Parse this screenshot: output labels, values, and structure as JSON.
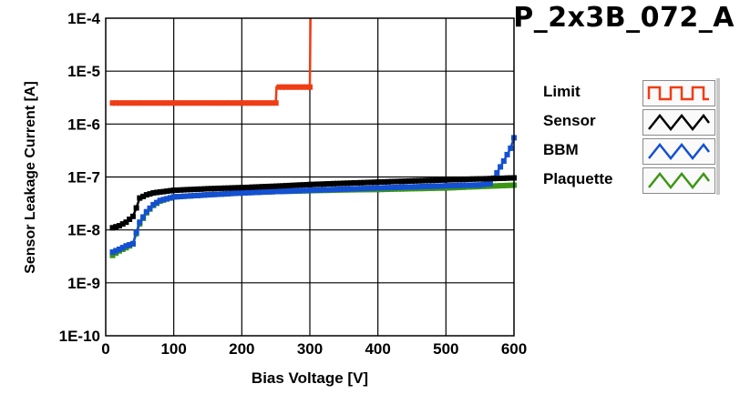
{
  "title": "P_2x3B_072_A",
  "colors": {
    "limit": "#f03c14",
    "sensor": "#000000",
    "bbm": "#1450d2",
    "plaquette": "#3c9614",
    "grid": "#000000",
    "plot_bg": "#ffffff"
  },
  "chart_data": {
    "type": "line",
    "title": "P_2x3B_072_A",
    "xlabel": "Bias Voltage [V]",
    "ylabel": "Sensor Leakage Current [A]",
    "xlim": [
      0,
      600
    ],
    "ylim": [
      1e-10,
      0.0001
    ],
    "yscale": "log",
    "grid": true,
    "legend_position": "right",
    "x_ticks": [
      {
        "value": 0,
        "label": "0"
      },
      {
        "value": 100,
        "label": "100"
      },
      {
        "value": 200,
        "label": "200"
      },
      {
        "value": 300,
        "label": "300"
      },
      {
        "value": 400,
        "label": "400"
      },
      {
        "value": 500,
        "label": "500"
      },
      {
        "value": 600,
        "label": "600"
      }
    ],
    "y_ticks": [
      {
        "value": 0.0001,
        "label": "1E-4"
      },
      {
        "value": 1e-05,
        "label": "1E-5"
      },
      {
        "value": 1e-06,
        "label": "1E-6"
      },
      {
        "value": 1e-07,
        "label": "1E-7"
      },
      {
        "value": 1e-08,
        "label": "1E-8"
      },
      {
        "value": 1e-09,
        "label": "1E-9"
      },
      {
        "value": 1e-10,
        "label": "1E-10"
      }
    ],
    "series": [
      {
        "name": "Limit",
        "color": "#f03c14",
        "x": [
          10,
          250,
          251,
          300,
          301
        ],
        "y": [
          2.5e-06,
          2.5e-06,
          5e-06,
          5e-06,
          0.0001
        ]
      },
      {
        "name": "Sensor",
        "color": "#000000",
        "x": [
          10,
          20,
          30,
          40,
          45,
          50,
          60,
          70,
          80,
          100,
          150,
          200,
          250,
          300,
          350,
          400,
          450,
          500,
          550,
          600
        ],
        "y": [
          1.1e-08,
          1.2e-08,
          1.4e-08,
          1.8e-08,
          2.6e-08,
          4e-08,
          4.6e-08,
          5e-08,
          5.2e-08,
          5.6e-08,
          6e-08,
          6.3e-08,
          6.7e-08,
          7.2e-08,
          7.6e-08,
          8e-08,
          8.4e-08,
          8.8e-08,
          9.2e-08,
          9.6e-08
        ]
      },
      {
        "name": "BBM",
        "color": "#1450d2",
        "x": [
          10,
          20,
          30,
          40,
          45,
          50,
          60,
          70,
          80,
          100,
          150,
          200,
          250,
          300,
          350,
          400,
          450,
          500,
          550,
          565,
          575,
          585,
          595,
          600
        ],
        "y": [
          3.8e-09,
          4.3e-09,
          5e-09,
          5.5e-09,
          9e-09,
          1.4e-08,
          2.2e-08,
          3e-08,
          3.6e-08,
          4.2e-08,
          4.6e-08,
          5e-08,
          5.3e-08,
          5.6e-08,
          5.9e-08,
          6.2e-08,
          6.5e-08,
          6.8e-08,
          7.1e-08,
          7.5e-08,
          1.2e-07,
          2e-07,
          3.5e-07,
          5.5e-07
        ]
      },
      {
        "name": "Plaquette",
        "color": "#3c9614",
        "x": [
          10,
          20,
          30,
          40,
          45,
          50,
          60,
          70,
          80,
          100,
          150,
          200,
          250,
          300,
          350,
          400,
          450,
          500,
          550,
          600
        ],
        "y": [
          3.3e-09,
          4e-09,
          4.6e-09,
          5.4e-09,
          8.5e-09,
          1.3e-08,
          2.1e-08,
          2.9e-08,
          3.5e-08,
          4.2e-08,
          4.6e-08,
          5e-08,
          5.3e-08,
          5.5e-08,
          5.7e-08,
          5.8e-08,
          6e-08,
          6.2e-08,
          6.6e-08,
          7e-08
        ]
      }
    ]
  },
  "legend": {
    "items": [
      {
        "label": "Limit",
        "color": "#f03c14",
        "icon": "square-wave-icon"
      },
      {
        "label": "Sensor",
        "color": "#000000",
        "icon": "triangle-wave-icon"
      },
      {
        "label": "BBM",
        "color": "#1450d2",
        "icon": "triangle-wave-icon"
      },
      {
        "label": "Plaquette",
        "color": "#3c9614",
        "icon": "triangle-wave-icon"
      }
    ]
  }
}
